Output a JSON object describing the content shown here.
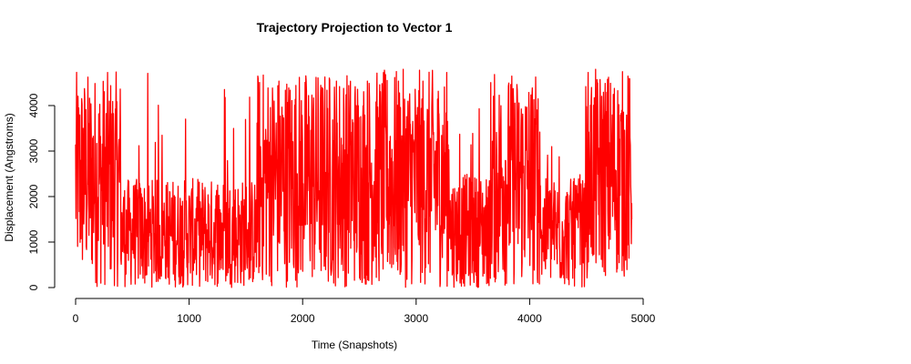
{
  "chart_data": {
    "type": "line",
    "title": "Trajectory Projection to Vector 1",
    "xlabel": "Time (Snapshots)",
    "ylabel": "Displacement (Angstroms)",
    "xlim": [
      0,
      5000
    ],
    "ylim": [
      0,
      4800
    ],
    "x_ticks": [
      0,
      1000,
      2000,
      3000,
      4000,
      5000
    ],
    "y_ticks": [
      0,
      1000,
      2000,
      3000,
      4000
    ],
    "grid": false,
    "legend": "none",
    "series": [
      {
        "color": "#ff0000",
        "x_range": [
          0,
          4900
        ],
        "segments": [
          {
            "x_start": 0,
            "x_end": 150,
            "low": 100,
            "high": 4750
          },
          {
            "x_start": 150,
            "x_end": 400,
            "low": 0,
            "high": 4750
          },
          {
            "x_start": 400,
            "x_end": 1600,
            "low": 0,
            "high": 2400,
            "bursts_to": 4750
          },
          {
            "x_start": 1600,
            "x_end": 3300,
            "low": 0,
            "high": 4800
          },
          {
            "x_start": 3300,
            "x_end": 3650,
            "low": 0,
            "high": 2500,
            "bursts_to": 4500
          },
          {
            "x_start": 3650,
            "x_end": 4100,
            "low": 0,
            "high": 4750
          },
          {
            "x_start": 4100,
            "x_end": 4500,
            "low": 0,
            "high": 2400,
            "bursts_to": 4600
          },
          {
            "x_start": 4500,
            "x_end": 4900,
            "low": 200,
            "high": 4800
          }
        ],
        "end_value": 1500
      }
    ]
  }
}
